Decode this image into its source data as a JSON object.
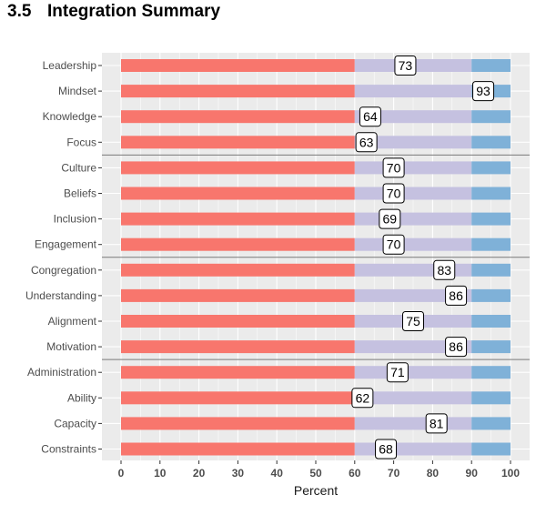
{
  "heading": {
    "number": "3.5",
    "title": "Integration Summary"
  },
  "chart_data": {
    "type": "bar",
    "orientation": "horizontal",
    "stacked": true,
    "xlabel": "Percent",
    "ylabel": "",
    "xlim": [
      0,
      100
    ],
    "x_ticks": [
      0,
      10,
      20,
      30,
      40,
      50,
      60,
      70,
      80,
      90,
      100
    ],
    "grid": true,
    "bands": [
      {
        "from": 0,
        "to": 60,
        "color": "#f8766d"
      },
      {
        "from": 60,
        "to": 90,
        "color": "#c5c1e0"
      },
      {
        "from": 90,
        "to": 100,
        "color": "#7fb1d8"
      }
    ],
    "categories": [
      "Leadership",
      "Mindset",
      "Knowledge",
      "Focus",
      "Culture",
      "Beliefs",
      "Inclusion",
      "Engagement",
      "Congregation",
      "Understanding",
      "Alignment",
      "Motivation",
      "Administration",
      "Ability",
      "Capacity",
      "Constraints"
    ],
    "values": [
      73,
      93,
      64,
      63,
      70,
      70,
      69,
      70,
      83,
      86,
      75,
      86,
      71,
      62,
      81,
      68
    ],
    "group_separators_after": [
      3,
      7,
      11
    ],
    "colors": {
      "panel": "#ebebeb",
      "grid": "#ffffff",
      "separator": "#7a7a7a"
    }
  }
}
